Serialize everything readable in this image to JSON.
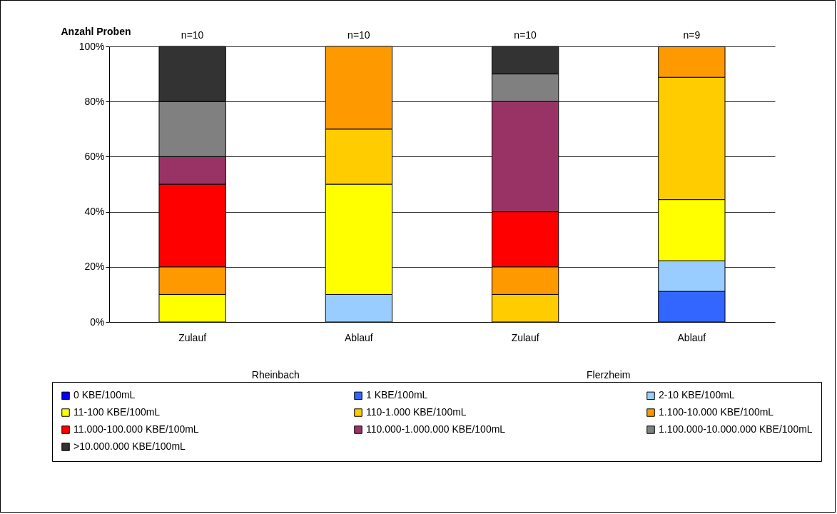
{
  "chart_data": {
    "type": "bar",
    "stacked": true,
    "ylabel": "Anzahl Proben",
    "categories": [
      "Zulauf",
      "Ablauf",
      "Zulauf",
      "Ablauf"
    ],
    "annotations": [
      "n=10",
      "n=10",
      "n=10",
      "n=9",
      "Rheinbach",
      "Flerzheim"
    ],
    "ylim": [
      0,
      100
    ],
    "yticks": [
      {
        "value": 0,
        "label": "0%"
      },
      {
        "value": 20,
        "label": "20%"
      },
      {
        "value": 40,
        "label": "40%"
      },
      {
        "value": 60,
        "label": "60%"
      },
      {
        "value": 80,
        "label": "80%"
      },
      {
        "value": 100,
        "label": "100%"
      }
    ],
    "grid": "y",
    "legend": "bottom",
    "series": [
      {
        "name": "0 KBE/100mL",
        "color": "#0000ff",
        "values": [
          null,
          null,
          null,
          null
        ]
      },
      {
        "name": "1 KBE/100mL",
        "color": "#3366ff",
        "values": [
          null,
          null,
          null,
          11.1
        ]
      },
      {
        "name": "2-10 KBE/100mL",
        "color": "#99ccff",
        "values": [
          null,
          10,
          null,
          11.1
        ]
      },
      {
        "name": "11-100 KBE/100mL",
        "color": "#ffff00",
        "values": [
          10,
          40,
          null,
          22.2
        ]
      },
      {
        "name": "110-1.000 KBE/100mL",
        "color": "#ffcc00",
        "values": [
          null,
          20,
          10,
          44.4
        ]
      },
      {
        "name": "1.100-10.000 KBE/100mL",
        "color": "#ff9900",
        "values": [
          10,
          30,
          10,
          11.1
        ]
      },
      {
        "name": "11.000-100.000 KBE/100mL",
        "color": "#ff0000",
        "values": [
          30,
          null,
          20,
          null
        ]
      },
      {
        "name": "110.000-1.000.000 KBE/100mL",
        "color": "#993366",
        "values": [
          10,
          null,
          40,
          null
        ]
      },
      {
        "name": "1.100.000-10.000.000 KBE/100mL",
        "color": "#808080",
        "values": [
          20,
          null,
          10,
          null
        ]
      },
      {
        "name": ">10.000.000 KBE/100mL",
        "color": "#333333",
        "values": [
          20,
          null,
          10,
          null
        ]
      }
    ]
  }
}
